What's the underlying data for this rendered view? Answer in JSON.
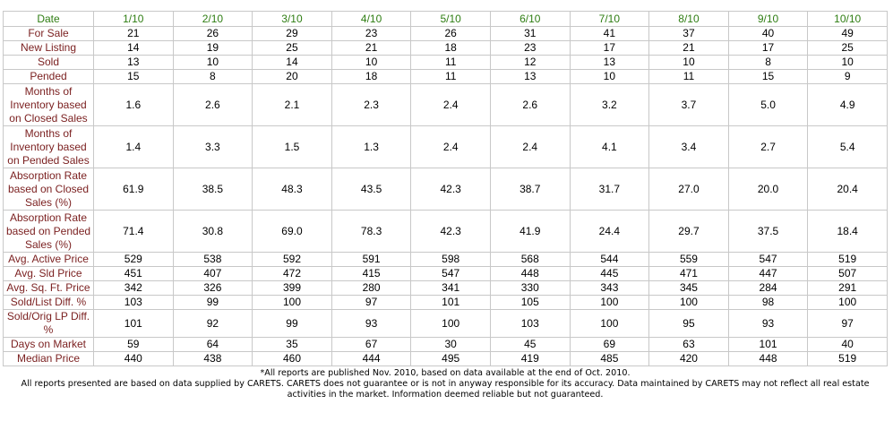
{
  "table": {
    "header": [
      "Date",
      "1/10",
      "2/10",
      "3/10",
      "4/10",
      "5/10",
      "6/10",
      "7/10",
      "8/10",
      "9/10",
      "10/10"
    ],
    "rows": [
      {
        "label": "For Sale",
        "values": [
          "21",
          "26",
          "29",
          "23",
          "26",
          "31",
          "41",
          "37",
          "40",
          "49"
        ]
      },
      {
        "label": "New Listing",
        "values": [
          "14",
          "19",
          "25",
          "21",
          "18",
          "23",
          "17",
          "21",
          "17",
          "25"
        ]
      },
      {
        "label": "Sold",
        "values": [
          "13",
          "10",
          "14",
          "10",
          "11",
          "12",
          "13",
          "10",
          "8",
          "10"
        ]
      },
      {
        "label": "Pended",
        "values": [
          "15",
          "8",
          "20",
          "18",
          "11",
          "13",
          "10",
          "11",
          "15",
          "9"
        ]
      },
      {
        "label": "Months of Inventory based on Closed Sales",
        "values": [
          "1.6",
          "2.6",
          "2.1",
          "2.3",
          "2.4",
          "2.6",
          "3.2",
          "3.7",
          "5.0",
          "4.9"
        ]
      },
      {
        "label": "Months of Inventory based on Pended Sales",
        "values": [
          "1.4",
          "3.3",
          "1.5",
          "1.3",
          "2.4",
          "2.4",
          "4.1",
          "3.4",
          "2.7",
          "5.4"
        ]
      },
      {
        "label": "Absorption Rate based on Closed Sales (%)",
        "values": [
          "61.9",
          "38.5",
          "48.3",
          "43.5",
          "42.3",
          "38.7",
          "31.7",
          "27.0",
          "20.0",
          "20.4"
        ]
      },
      {
        "label": "Absorption Rate based on Pended Sales (%)",
        "values": [
          "71.4",
          "30.8",
          "69.0",
          "78.3",
          "42.3",
          "41.9",
          "24.4",
          "29.7",
          "37.5",
          "18.4"
        ]
      },
      {
        "label": "Avg. Active Price",
        "values": [
          "529",
          "538",
          "592",
          "591",
          "598",
          "568",
          "544",
          "559",
          "547",
          "519"
        ]
      },
      {
        "label": "Avg. Sld Price",
        "values": [
          "451",
          "407",
          "472",
          "415",
          "547",
          "448",
          "445",
          "471",
          "447",
          "507"
        ]
      },
      {
        "label": "Avg. Sq. Ft. Price",
        "values": [
          "342",
          "326",
          "399",
          "280",
          "341",
          "330",
          "343",
          "345",
          "284",
          "291"
        ]
      },
      {
        "label": "Sold/List Diff. %",
        "values": [
          "103",
          "99",
          "100",
          "97",
          "101",
          "105",
          "100",
          "100",
          "98",
          "100"
        ]
      },
      {
        "label": "Sold/Orig LP Diff. %",
        "values": [
          "101",
          "92",
          "99",
          "93",
          "100",
          "103",
          "100",
          "95",
          "93",
          "97"
        ]
      },
      {
        "label": "Days on Market",
        "values": [
          "59",
          "64",
          "35",
          "67",
          "30",
          "45",
          "69",
          "63",
          "101",
          "40"
        ]
      },
      {
        "label": "Median Price",
        "values": [
          "440",
          "438",
          "460",
          "444",
          "495",
          "419",
          "485",
          "420",
          "448",
          "519"
        ]
      }
    ]
  },
  "footnotes": [
    "*All reports are published Nov. 2010, based on data available at the end of Oct. 2010.",
    "All reports presented are based on data supplied by CARETS. CARETS does not guarantee or is not in anyway responsible for its accuracy. Data maintained by CARETS may not reflect all real estate activities in the market. Information deemed reliable but not guaranteed."
  ]
}
